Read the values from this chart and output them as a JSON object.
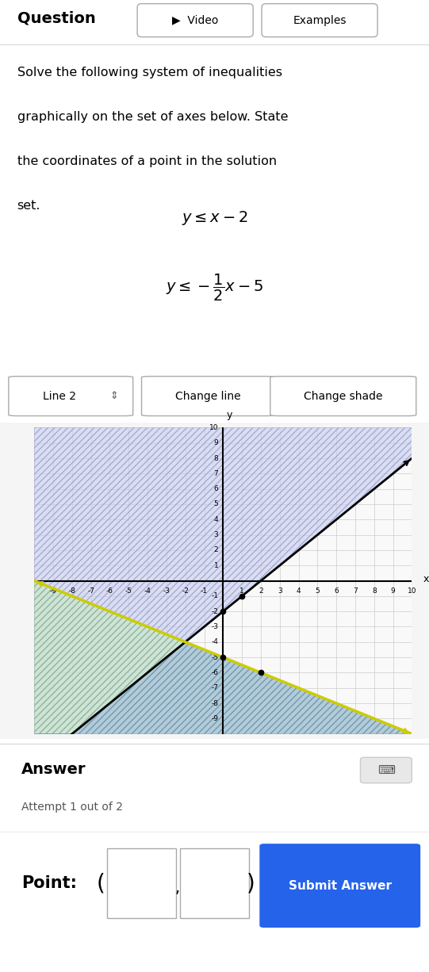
{
  "title_text": "Question",
  "video_btn": "Video",
  "examples_btn": "Examples",
  "problem_text": "Solve the following system of inequalities\ngraphically on the set of axes below. State\nthe coordinates of a point in the solution\nset.",
  "line1_slope": 1,
  "line1_intercept": -2,
  "line2_slope": -0.5,
  "line2_intercept": -5,
  "xlim": [
    -10,
    10
  ],
  "ylim": [
    -10,
    10
  ],
  "line1_color": "#000000",
  "line2_color": "#cccc00",
  "shade1_color": "#c8d0f0",
  "shade2_color": "#c8e8c8",
  "shade_overlap_color": "#a8c0d8",
  "grid_color": "#cccccc",
  "page_bg": "#f5f5f5",
  "panel_bg": "#ffffff",
  "dot_points": [
    [
      1,
      -1
    ],
    [
      0,
      -2
    ],
    [
      0,
      -5
    ],
    [
      2,
      -6
    ]
  ],
  "answer_text": "Answer",
  "attempt_text": "Attempt 1 out of 2",
  "point_label": "Point:",
  "submit_text": "Submit Answer",
  "submit_color": "#2563eb",
  "line2_label": "Line 2",
  "change_line_btn": "Change line",
  "change_shade_btn": "Change shade"
}
